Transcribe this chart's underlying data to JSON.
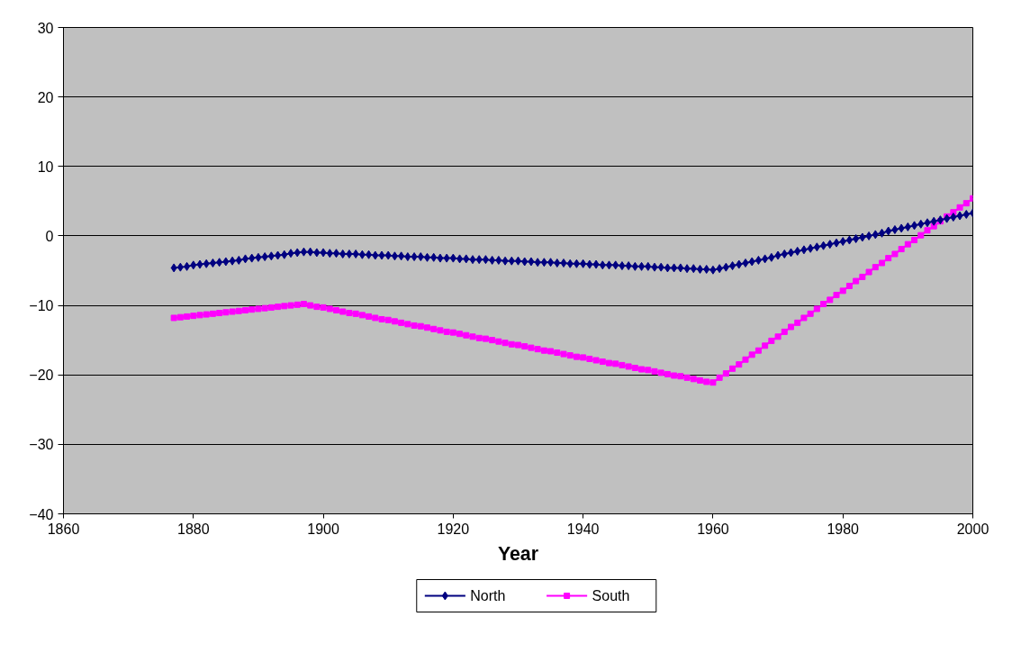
{
  "chart_data": {
    "type": "line",
    "xlabel": "Year",
    "xlim": [
      1860,
      2000
    ],
    "xticks": [
      1860,
      1880,
      1900,
      1920,
      1940,
      1960,
      1980,
      2000
    ],
    "ylim": [
      -40,
      30
    ],
    "yticks": [
      -40,
      -30,
      -20,
      -10,
      0,
      10,
      20,
      30
    ],
    "grid": "y",
    "legend": "bottom",
    "x": [
      1877,
      1878,
      1879,
      1880,
      1881,
      1882,
      1883,
      1884,
      1885,
      1886,
      1887,
      1888,
      1889,
      1890,
      1891,
      1892,
      1893,
      1894,
      1895,
      1896,
      1897,
      1898,
      1899,
      1900,
      1901,
      1902,
      1903,
      1904,
      1905,
      1906,
      1907,
      1908,
      1909,
      1910,
      1911,
      1912,
      1913,
      1914,
      1915,
      1916,
      1917,
      1918,
      1919,
      1920,
      1921,
      1922,
      1923,
      1924,
      1925,
      1926,
      1927,
      1928,
      1929,
      1930,
      1931,
      1932,
      1933,
      1934,
      1935,
      1936,
      1937,
      1938,
      1939,
      1940,
      1941,
      1942,
      1943,
      1944,
      1945,
      1946,
      1947,
      1948,
      1949,
      1950,
      1951,
      1952,
      1953,
      1954,
      1955,
      1956,
      1957,
      1958,
      1959,
      1960,
      1961,
      1962,
      1963,
      1964,
      1965,
      1966,
      1967,
      1968,
      1969,
      1970,
      1971,
      1972,
      1973,
      1974,
      1975,
      1976,
      1977,
      1978,
      1979,
      1980,
      1981,
      1982,
      1983,
      1984,
      1985,
      1986,
      1987,
      1988,
      1989,
      1990,
      1991,
      1992,
      1993,
      1994,
      1995,
      1996,
      1997,
      1998,
      1999,
      2000
    ],
    "series": [
      {
        "name": "North",
        "color": "#000080",
        "marker": "diamond",
        "values": [
          -4.6,
          -4.5,
          -4.4,
          -4.2,
          -4.1,
          -4.0,
          -3.9,
          -3.8,
          -3.7,
          -3.6,
          -3.5,
          -3.3,
          -3.2,
          -3.1,
          -3.0,
          -2.9,
          -2.8,
          -2.7,
          -2.5,
          -2.4,
          -2.3,
          -2.3,
          -2.4,
          -2.4,
          -2.5,
          -2.5,
          -2.6,
          -2.6,
          -2.6,
          -2.7,
          -2.7,
          -2.8,
          -2.8,
          -2.8,
          -2.9,
          -2.9,
          -3.0,
          -3.0,
          -3.0,
          -3.1,
          -3.1,
          -3.2,
          -3.2,
          -3.2,
          -3.3,
          -3.3,
          -3.4,
          -3.4,
          -3.4,
          -3.5,
          -3.5,
          -3.6,
          -3.6,
          -3.6,
          -3.7,
          -3.7,
          -3.8,
          -3.8,
          -3.8,
          -3.9,
          -3.9,
          -4.0,
          -4.0,
          -4.0,
          -4.1,
          -4.1,
          -4.2,
          -4.2,
          -4.2,
          -4.3,
          -4.3,
          -4.4,
          -4.4,
          -4.4,
          -4.5,
          -4.5,
          -4.6,
          -4.6,
          -4.6,
          -4.7,
          -4.7,
          -4.8,
          -4.8,
          -4.9,
          -4.7,
          -4.5,
          -4.3,
          -4.1,
          -3.9,
          -3.7,
          -3.5,
          -3.3,
          -3.1,
          -2.8,
          -2.6,
          -2.4,
          -2.2,
          -2.0,
          -1.8,
          -1.6,
          -1.4,
          -1.2,
          -1.0,
          -0.8,
          -0.6,
          -0.4,
          -0.2,
          0.0,
          0.2,
          0.4,
          0.7,
          0.9,
          1.1,
          1.3,
          1.5,
          1.7,
          1.9,
          2.1,
          2.3,
          2.5,
          2.7,
          2.9,
          3.1,
          3.3
        ]
      },
      {
        "name": "South",
        "color": "#ff00ff",
        "marker": "square",
        "values": [
          -11.8,
          -11.7,
          -11.6,
          -11.5,
          -11.4,
          -11.3,
          -11.2,
          -11.1,
          -11.0,
          -10.9,
          -10.8,
          -10.7,
          -10.6,
          -10.5,
          -10.4,
          -10.3,
          -10.2,
          -10.1,
          -10.0,
          -9.9,
          -9.8,
          -10.0,
          -10.2,
          -10.3,
          -10.5,
          -10.7,
          -10.9,
          -11.1,
          -11.2,
          -11.4,
          -11.6,
          -11.8,
          -12.0,
          -12.1,
          -12.3,
          -12.5,
          -12.7,
          -12.9,
          -13.0,
          -13.2,
          -13.4,
          -13.6,
          -13.8,
          -13.9,
          -14.1,
          -14.3,
          -14.5,
          -14.7,
          -14.8,
          -15.0,
          -15.2,
          -15.4,
          -15.6,
          -15.7,
          -15.9,
          -16.1,
          -16.3,
          -16.5,
          -16.6,
          -16.8,
          -17.0,
          -17.2,
          -17.4,
          -17.5,
          -17.7,
          -17.9,
          -18.1,
          -18.3,
          -18.4,
          -18.6,
          -18.8,
          -19.0,
          -19.2,
          -19.3,
          -19.5,
          -19.7,
          -19.9,
          -20.1,
          -20.2,
          -20.4,
          -20.6,
          -20.8,
          -21.0,
          -21.1,
          -20.4,
          -19.8,
          -19.1,
          -18.5,
          -17.8,
          -17.1,
          -16.5,
          -15.8,
          -15.1,
          -14.5,
          -13.8,
          -13.1,
          -12.5,
          -11.8,
          -11.2,
          -10.5,
          -9.8,
          -9.2,
          -8.5,
          -7.9,
          -7.2,
          -6.5,
          -5.9,
          -5.2,
          -4.5,
          -3.9,
          -3.2,
          -2.6,
          -1.9,
          -1.2,
          -0.6,
          0.1,
          0.8,
          1.4,
          2.1,
          2.8,
          3.4,
          4.1,
          4.7,
          5.4
        ]
      }
    ]
  }
}
